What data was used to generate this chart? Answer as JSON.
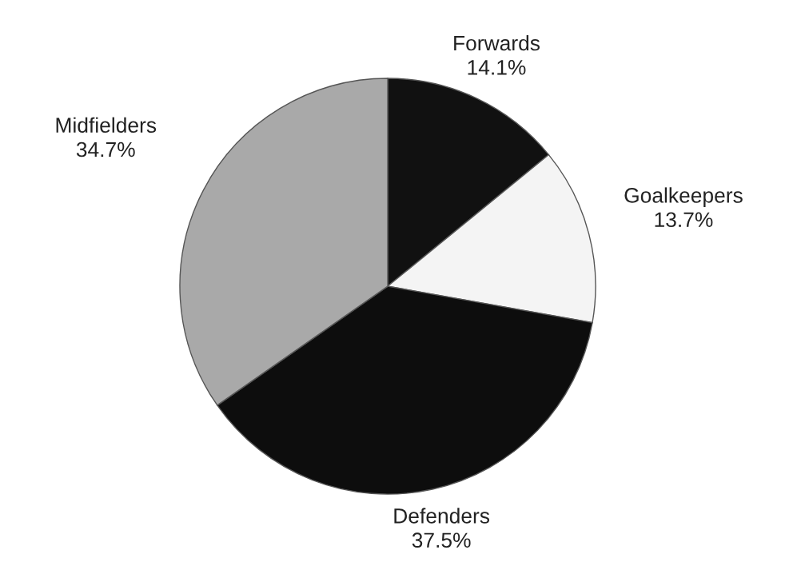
{
  "chart_data": {
    "type": "pie",
    "categories": [
      "Forwards",
      "Goalkeepers",
      "Defenders",
      "Midfielders"
    ],
    "values": [
      14.1,
      13.7,
      37.5,
      34.7
    ],
    "value_labels": [
      "14.1%",
      "13.7%",
      "37.5%",
      "34.7%"
    ],
    "colors": [
      "#111111",
      "#f4f4f4",
      "#0d0d0d",
      "#a9a9a9"
    ]
  }
}
